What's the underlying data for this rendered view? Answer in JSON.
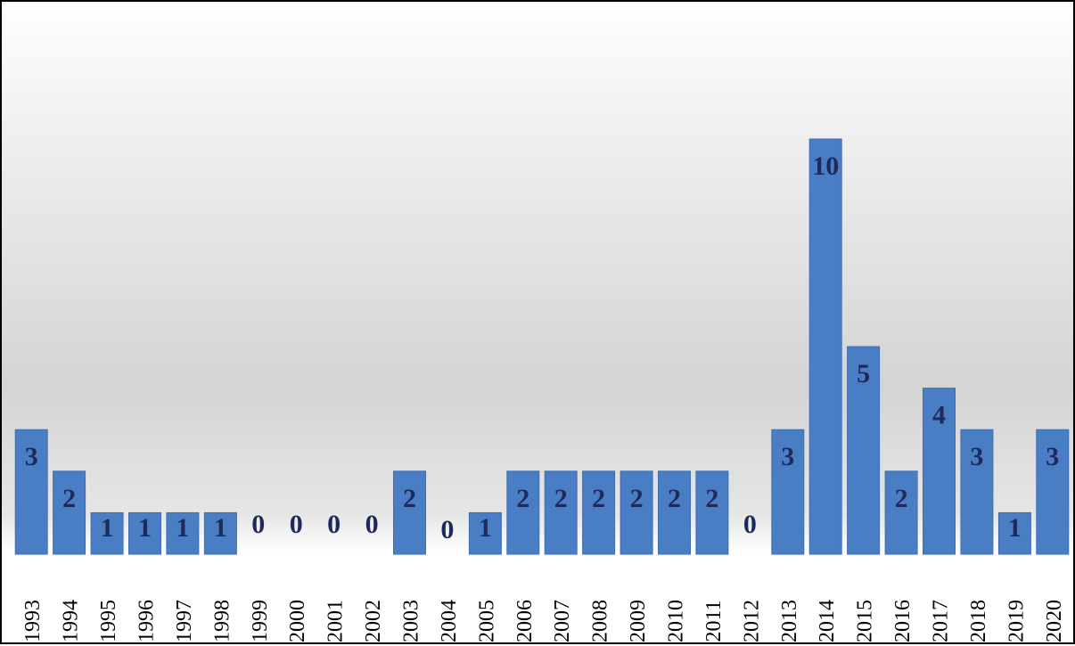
{
  "chart_data": {
    "type": "bar",
    "categories": [
      "1993",
      "1994",
      "1995",
      "1996",
      "1997",
      "1998",
      "1999",
      "2000",
      "2001",
      "2002",
      "2003",
      "2004",
      "2005",
      "2006",
      "2007",
      "2008",
      "2009",
      "2010",
      "2011",
      "2012",
      "2013",
      "2014",
      "2015",
      "2016",
      "2017",
      "2018",
      "2019",
      "2020"
    ],
    "values": [
      3,
      2,
      1,
      1,
      1,
      1,
      0,
      0,
      0,
      0,
      2,
      0,
      1,
      2,
      2,
      2,
      2,
      2,
      2,
      0,
      3,
      10,
      5,
      2,
      4,
      3,
      1,
      3
    ],
    "title": "",
    "xlabel": "",
    "ylabel": "",
    "ylim": [
      0,
      13.3
    ],
    "grid": false,
    "legend": "none",
    "tick_label_rotation": "vertical",
    "data_labels": true,
    "colors": {
      "bar_fill": "#4a7ec4",
      "bar_edge": "#3f6fb0",
      "data_label": "#1f2a5c",
      "frame_border": "#000000"
    }
  }
}
